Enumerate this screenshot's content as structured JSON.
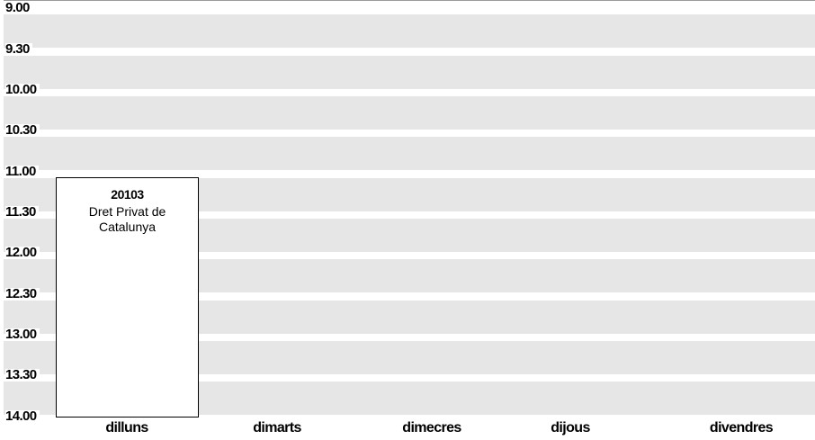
{
  "timetable": {
    "times": [
      "9.00",
      "9.30",
      "10.00",
      "10.30",
      "11.00",
      "11.30",
      "12.00",
      "12.30",
      "13.00",
      "13.30",
      "14.00"
    ],
    "days": [
      "dilluns",
      "dimarts",
      "dimecres",
      "dijous",
      "divendres"
    ],
    "events": [
      {
        "code": "20103",
        "name": "Dret Privat de Catalunya",
        "day": "dilluns",
        "start": "11.00",
        "end": "14.00"
      }
    ]
  },
  "colors": {
    "band": "#e6e6e6",
    "background": "#ffffff",
    "event_border": "#000000"
  }
}
